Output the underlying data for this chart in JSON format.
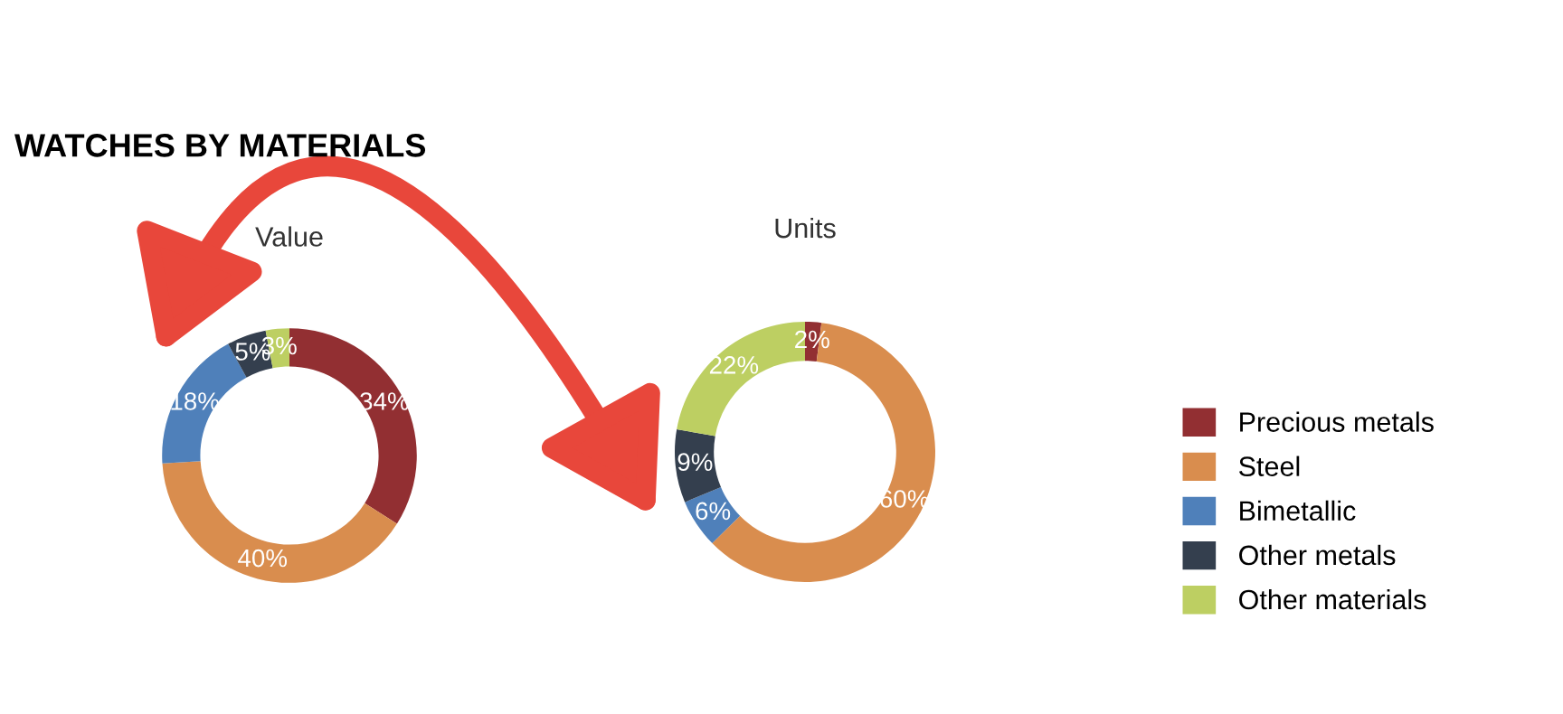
{
  "chart_data": [
    {
      "type": "donut",
      "title": "WATCHES BY MATERIALS",
      "subtitle": "Value",
      "legend": "right",
      "categories": [
        "Precious metals",
        "Steel",
        "Bimetallic",
        "Other metals",
        "Other materials"
      ],
      "values": [
        34,
        40,
        18,
        5,
        3
      ],
      "value_labels": [
        "34%",
        "40%",
        "18%",
        "5%",
        "3%"
      ],
      "colors": [
        "#922f32",
        "#d98d4e",
        "#4f80ba",
        "#343f4e",
        "#bdcf62"
      ]
    },
    {
      "type": "donut",
      "subtitle": "Units",
      "values": [
        2,
        60,
        6,
        9,
        22
      ],
      "value_labels": [
        "2%",
        "60%",
        "6%",
        "9%",
        "22%"
      ],
      "colors": [
        "#922f32",
        "#d98d4e",
        "#4f80ba",
        "#343f4e",
        "#bdcf62"
      ]
    }
  ]
}
